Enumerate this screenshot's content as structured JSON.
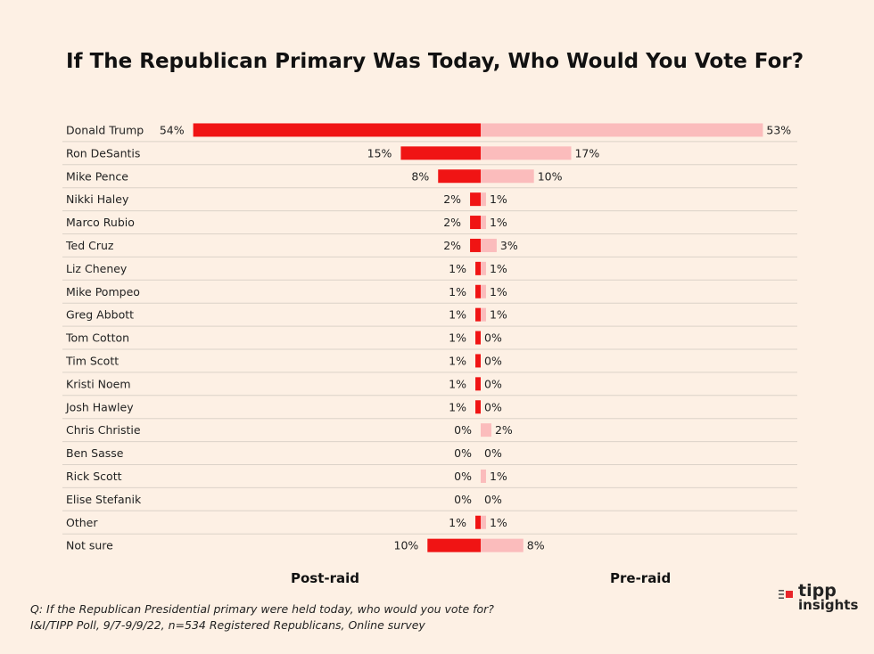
{
  "chart_data": {
    "type": "bar",
    "title": "If The Republican Primary Was Today, Who Would You Vote For?",
    "categories": [
      "Donald Trump",
      "Ron DeSantis",
      "Mike Pence",
      "Nikki Haley",
      "Marco Rubio",
      "Ted Cruz",
      "Liz Cheney",
      "Mike Pompeo",
      "Greg Abbott",
      "Tom Cotton",
      "Tim Scott",
      "Kristi Noem",
      "Josh Hawley",
      "Chris Christie",
      "Ben Sasse",
      "Rick Scott",
      "Elise Stefanik",
      "Other",
      "Not sure"
    ],
    "series": [
      {
        "name": "Post-raid",
        "values": [
          54,
          15,
          8,
          2,
          2,
          2,
          1,
          1,
          1,
          1,
          1,
          1,
          1,
          0,
          0,
          0,
          0,
          1,
          10
        ],
        "color": "#f01414"
      },
      {
        "name": "Pre-raid",
        "values": [
          53,
          17,
          10,
          1,
          1,
          3,
          1,
          1,
          1,
          0,
          0,
          0,
          0,
          2,
          0,
          1,
          0,
          1,
          8
        ],
        "color": "#fbbcbc"
      }
    ],
    "value_suffix": "%",
    "orientation": "horizontal-diverging",
    "xlim": [
      0,
      54
    ]
  },
  "legend": {
    "post_label": "Post-raid",
    "pre_label": "Pre-raid"
  },
  "footnote": {
    "line1": "Q:  If the Republican Presidential primary were held today, who would you vote for?",
    "line2": "I&I/TIPP Poll, 9/7-9/9/22, n=534 Registered Republicans, Online survey"
  },
  "logo": {
    "line1": "tipp",
    "line2": "insights"
  }
}
